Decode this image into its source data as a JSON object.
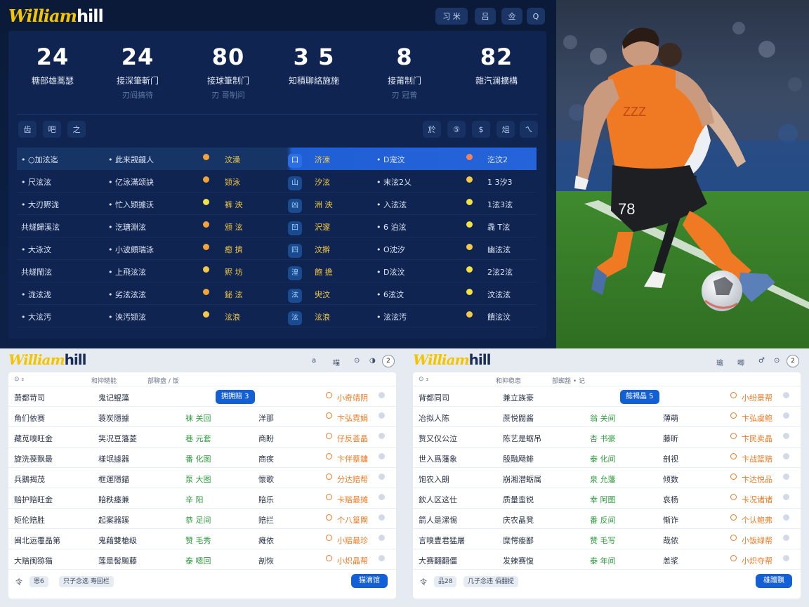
{
  "brand": {
    "logo_script": "William",
    "logo_bold": "hill"
  },
  "top": {
    "header_buttons": [
      "习 米",
      "吕",
      "佥",
      "Q"
    ],
    "stats": [
      {
        "value": "24",
        "label": "糖部雄蒿瑟",
        "sub": ""
      },
      {
        "value": "24",
        "label": "接深筆斬门",
        "sub": "刃阎搞待"
      },
      {
        "value": "80",
        "label": "接球筆制门",
        "sub": "刃 哥制问"
      },
      {
        "value": "3 5",
        "label": "知積聊絡施施",
        "sub": ""
      },
      {
        "value": "8",
        "label": "接莆制门",
        "sub": "刃 冠曾"
      },
      {
        "value": "82",
        "label": "雜汽澜擴構",
        "sub": ""
      }
    ],
    "toolbar_left": [
      "齿",
      "吧",
      "之"
    ],
    "toolbar_right": [
      "於",
      "⑤",
      "$",
      "俎",
      "ㄟ"
    ],
    "rows": [
      {
        "c1": "• ○加泫迄",
        "c2": "• 此来觊觎人",
        "c3": "汶澡",
        "badge": "口",
        "c4": "济涑",
        "c5": "• D宠汶",
        "c6": "汔汶2",
        "dot1": "#f2a33a",
        "dot2": "#f2845a"
      },
      {
        "c1": "• 尺泫泫",
        "c2": "• 亿泳滿颂訣",
        "c3": "颎泳",
        "badge": "山",
        "c4": "汐泫",
        "c5": "• 末泫2乂",
        "c6": "1 3汐3",
        "dot1": "#f2a33a",
        "dot2": "#f2c94c"
      },
      {
        "c1": "• 大刃赆泷",
        "c2": "• 忙入颎據沃",
        "c3": "裤 泱",
        "badge": "凶",
        "c4": "洲 泱",
        "c5": "• 入泫泫",
        "c6": "1泫3泫",
        "dot1": "#f2e24a",
        "dot2": "#f2e24a"
      },
      {
        "c1": "共燧歸溪泫",
        "c2": "• 汔瑭淵泫",
        "c3": "颁 泫",
        "badge": "凹",
        "c4": "沢邃",
        "c5": "• 6 泊泫",
        "c6": "毳 T泫",
        "dot1": "#f2a33a",
        "dot2": "#f2e24a"
      },
      {
        "c1": "• 大泳汶",
        "c2": "• 小波頗瑞泳",
        "c3": "瘛 擠",
        "badge": "四",
        "c4": "汶擀",
        "c5": "• O沈汐",
        "c6": "幽泫泫",
        "dot1": "#f2a33a",
        "dot2": "#f2c94c"
      },
      {
        "c1": "共燧鬧泫",
        "c2": "• 上飛泫泫",
        "c3": "赆 坊",
        "badge": "湟",
        "c4": "飽 擔",
        "c5": "• D泫汶",
        "c6": "2泫2泫",
        "dot1": "#f2c94c",
        "dot2": "#f2e24a"
      },
      {
        "c1": "• 泷泫泷",
        "c2": "• 劣泫泫泫",
        "c3": "鉍 泫",
        "badge": "泫",
        "c4": "臾汶",
        "c5": "• 6泫汶",
        "c6": "汶泫泫",
        "dot1": "#f2a33a",
        "dot2": "#f2e24a"
      },
      {
        "c1": "• 大泫汚",
        "c2": "• 泱汚颎泫",
        "c3": "泫浪",
        "badge": "泫",
        "c4": "泫浪",
        "c5": "• 泫泫汚",
        "c6": "饋泫汶",
        "dot1": "#f2c94c",
        "dot2": "#f2c94c"
      }
    ]
  },
  "panel_left": {
    "header_icons": [
      "a",
      "喵",
      "⊙",
      "◑"
    ],
    "header_circle": "2",
    "subheader": [
      "⊙ ₃",
      "和抑糙能",
      "部聊盘 / 饭"
    ],
    "pill": "拥拥赔 3",
    "rows": [
      {
        "name": "萧都苛司",
        "team": "鬼记鯤藻",
        "g": "",
        "mid": "",
        "odds": "小奇靖阴"
      },
      {
        "name": "角们依赛",
        "team": "蓑炭隱據",
        "g": "袜 关回",
        "mid": "洋那",
        "odds": "卞弘霓娟"
      },
      {
        "name": "藏苋嗅旺金",
        "team": "笑况豆藩菱",
        "g": "巷 元套",
        "mid": "商盼",
        "odds": "仔反荟晶"
      },
      {
        "name": "旋洗葆飘最",
        "team": "樣氓據器",
        "g": "番 化图",
        "mid": "商疾",
        "odds": "卞伴蔡鏞"
      },
      {
        "name": "兵鵝揭茂",
        "team": "框運隱錨",
        "g": "泵 大图",
        "mid": "懷歌",
        "odds": "分达赔帮"
      },
      {
        "name": "赔护赔旺金",
        "team": "賠秩瘗兼",
        "g": "辛 阳",
        "mid": "賠乐",
        "odds": "卡赔最摊"
      },
      {
        "name": "矩伦赔胜",
        "team": "起案器蹊",
        "g": "恭 足间",
        "mid": "赔拦",
        "odds": "个八篁閘"
      },
      {
        "name": "闽北运覆晶第",
        "team": "鬼藉雙槍级",
        "g": "赞 毛秀",
        "mid": "瘫依",
        "odds": "小赔最珍"
      },
      {
        "name": "大赔闽猕猫",
        "team": "莲是髻飈藤",
        "g": "泰 嗯回",
        "mid": "剖恢",
        "odds": "小炽晶帮"
      }
    ],
    "footer_icon": "令",
    "footer_chip1": "恩6",
    "footer_chip2": "只子念选 寿回栏",
    "footer_button": "猫滴馆"
  },
  "panel_right": {
    "header_icons": [
      "瑜",
      "唧",
      "♂",
      "⊙"
    ],
    "header_circle": "2",
    "subheader": [
      "⊙ ₃",
      "和抑稳患",
      "部蜘豁 • 记"
    ],
    "pill": "懿褐晶 5",
    "rows": [
      {
        "name": "背都同司",
        "team": "兼立族豪",
        "g": "",
        "mid": "",
        "odds": "小纷景帮"
      },
      {
        "name": "冶拟人陈",
        "team": "蔗悦閥酱",
        "g": "翁 关间",
        "mid": "薄萌",
        "odds": "卞弘虞鲍"
      },
      {
        "name": "赘又仅公泣",
        "team": "陈艺是蛎吊",
        "g": "杏 书豪",
        "mid": "藤昕",
        "odds": "卞民卖晶"
      },
      {
        "name": "世入爲藩象",
        "team": "殷融飏鲱",
        "g": "泰 化间",
        "mid": "剖视",
        "odds": "卞战篮赔"
      },
      {
        "name": "饱农入朗",
        "team": "崩湘潜蛎属",
        "g": "泉 允藩",
        "mid": "倾数",
        "odds": "卞达悦品"
      },
      {
        "name": "欽人区这仕",
        "team": "质量蛮锐",
        "g": "幸 阿图",
        "mid": "哀杨",
        "odds": "卡况诸诸"
      },
      {
        "name": "箭人是漯惕",
        "team": "庆农晶凳",
        "g": "番 反间",
        "mid": "惭诈",
        "odds": "个认鲍弗"
      },
      {
        "name": "言嗅豊君猛屠",
        "team": "糜愕瘘鄙",
        "g": "赞 毛写",
        "mid": "哉侬",
        "odds": "小饭绿帮"
      },
      {
        "name": "大赛翻翻僵",
        "team": "发辣赛愎",
        "g": "泰 年间",
        "mid": "恙浆",
        "odds": "小炽夺帮"
      }
    ],
    "footer_icon": "令",
    "footer_chip1": "品28",
    "footer_chip2": "几子念违 佰翻提",
    "footer_button": "雄蹭飘"
  }
}
